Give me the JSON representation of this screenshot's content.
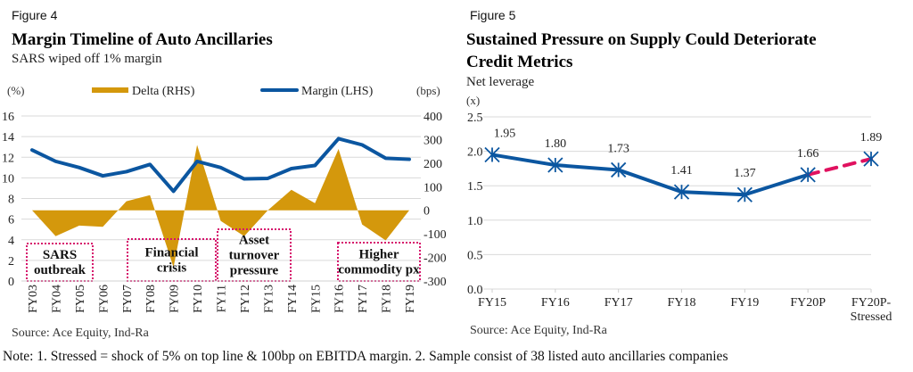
{
  "figure4": {
    "label": "Figure 4",
    "title": "Margin Timeline of Auto Ancillaries",
    "subtitle": "SARS wiped off 1% margin",
    "source": "Source: Ace Equity, Ind-Ra"
  },
  "figure5": {
    "label": "Figure 5",
    "title_line1": "Sustained Pressure on Supply Could Deteriorate",
    "title_line2": "Credit Metrics",
    "subtitle": "Net leverage",
    "source": "Source: Ace Equity, Ind-Ra"
  },
  "note": "Note: 1. Stressed = shock of 5% on top line & 100bp on EBITDA margin. 2. Sample consist of 38 listed auto ancillaries companies",
  "colors": {
    "margin_line": "#0b56a0",
    "delta_area": "#d4980c",
    "stressed_dash": "#e0115f",
    "annotation_border": "#d6146c",
    "gridline": "#d9d9d9"
  },
  "chart_data": [
    {
      "type": "line",
      "title": "Margin Timeline of Auto Ancillaries",
      "subtitle": "SARS wiped off 1% margin",
      "categories": [
        "FY03",
        "FY04",
        "FY05",
        "FY06",
        "FY07",
        "FY08",
        "FY09",
        "FY10",
        "FY11",
        "FY12",
        "FY13",
        "FY14",
        "FY15",
        "FY16",
        "FY17",
        "FY18",
        "FY19"
      ],
      "series": [
        {
          "name": "Delta (RHS)",
          "kind": "area",
          "axis": "right",
          "values": [
            0,
            -110,
            -65,
            -70,
            38,
            64,
            -242,
            277,
            -45,
            -110,
            0,
            87,
            30,
            260,
            -60,
            -128,
            0
          ]
        },
        {
          "name": "Margin (LHS)",
          "kind": "line",
          "axis": "left",
          "values": [
            12.7,
            11.6,
            11.0,
            10.2,
            10.6,
            11.3,
            8.7,
            11.6,
            11.0,
            9.9,
            9.95,
            10.9,
            11.2,
            13.8,
            13.2,
            11.9,
            11.8
          ]
        }
      ],
      "ylabel_left": "(%)",
      "ylabel_right": "(bps)",
      "ylim_left": [
        0,
        16
      ],
      "yticks_left": [
        "0",
        "2",
        "4",
        "6",
        "8",
        "10",
        "12",
        "14",
        "16"
      ],
      "ylim_right": [
        -300,
        400
      ],
      "yticks_right": [
        "-300",
        "-200",
        "-100",
        "0",
        "100",
        "200",
        "300",
        "400"
      ],
      "grid": true,
      "legend_position": "top",
      "legend": [
        "Delta (RHS)",
        "Margin (LHS)"
      ],
      "annotations": [
        {
          "text_lines": [
            "SARS",
            "outbreak"
          ],
          "from": "FY03",
          "to": "FY05"
        },
        {
          "text_lines": [
            "Financial",
            "crisis"
          ],
          "from": "FY07",
          "to": "FY10"
        },
        {
          "text_lines": [
            "Asset",
            "turnover",
            "pressure"
          ],
          "from": "FY11",
          "to": "FY13"
        },
        {
          "text_lines": [
            "Higher",
            "commodity px"
          ],
          "from": "FY16",
          "to": "FY19"
        }
      ]
    },
    {
      "type": "line",
      "title": "Sustained Pressure on Supply Could Deteriorate Credit Metrics",
      "subtitle": "Net leverage",
      "categories": [
        "FY15",
        "FY16",
        "FY17",
        "FY18",
        "FY19",
        "FY20P",
        "FY20P-\nStressed"
      ],
      "category_lines": [
        [
          "FY15"
        ],
        [
          "FY16"
        ],
        [
          "FY17"
        ],
        [
          "FY18"
        ],
        [
          "FY19"
        ],
        [
          "FY20P"
        ],
        [
          "FY20P-",
          "Stressed"
        ]
      ],
      "series": [
        {
          "name": "Net leverage",
          "values": [
            1.95,
            1.8,
            1.73,
            1.41,
            1.37,
            1.66,
            1.89
          ],
          "data_labels": [
            "1.95",
            "1.80",
            "1.73",
            "1.41",
            "1.37",
            "1.66",
            "1.89"
          ],
          "marker": "asterisk",
          "stressed_segment": {
            "from": "FY20P",
            "to": "FY20P-\nStressed",
            "style": "dashed"
          }
        }
      ],
      "ylabel": "(x)",
      "ylim": [
        0,
        2.5
      ],
      "yticks": [
        "0.0",
        "0.5",
        "1.0",
        "1.5",
        "2.0",
        "2.5"
      ],
      "grid": true
    }
  ]
}
